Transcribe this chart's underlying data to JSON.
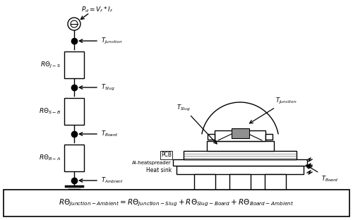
{
  "bg_color": "#ffffff",
  "line_color": "#000000",
  "labels_left": [
    "$R\\Theta_{J-S}$",
    "$R\\Theta_{S-B}$",
    "$R\\Theta_{B-A}$"
  ],
  "temp_labels_left": [
    "$T_{Junction}$",
    "$T_{Slug}$",
    "$T_{Board}$",
    "$T_{Ambient}$"
  ],
  "formula_text": "$R\\Theta_{Junction-Ambient} = R\\Theta_{Junction-Slug} + R\\Theta_{Slug-Board} + R\\Theta_{Board-Ambient}$",
  "pd_label": "$P_d = V_f * I_f$",
  "layer_labels": [
    "PCB",
    "Al-heatspreader",
    "Heat sink"
  ],
  "right_temp_labels": [
    "$T_{Slug}$",
    "$T_{Junction}$",
    "$T_{Board}$"
  ]
}
